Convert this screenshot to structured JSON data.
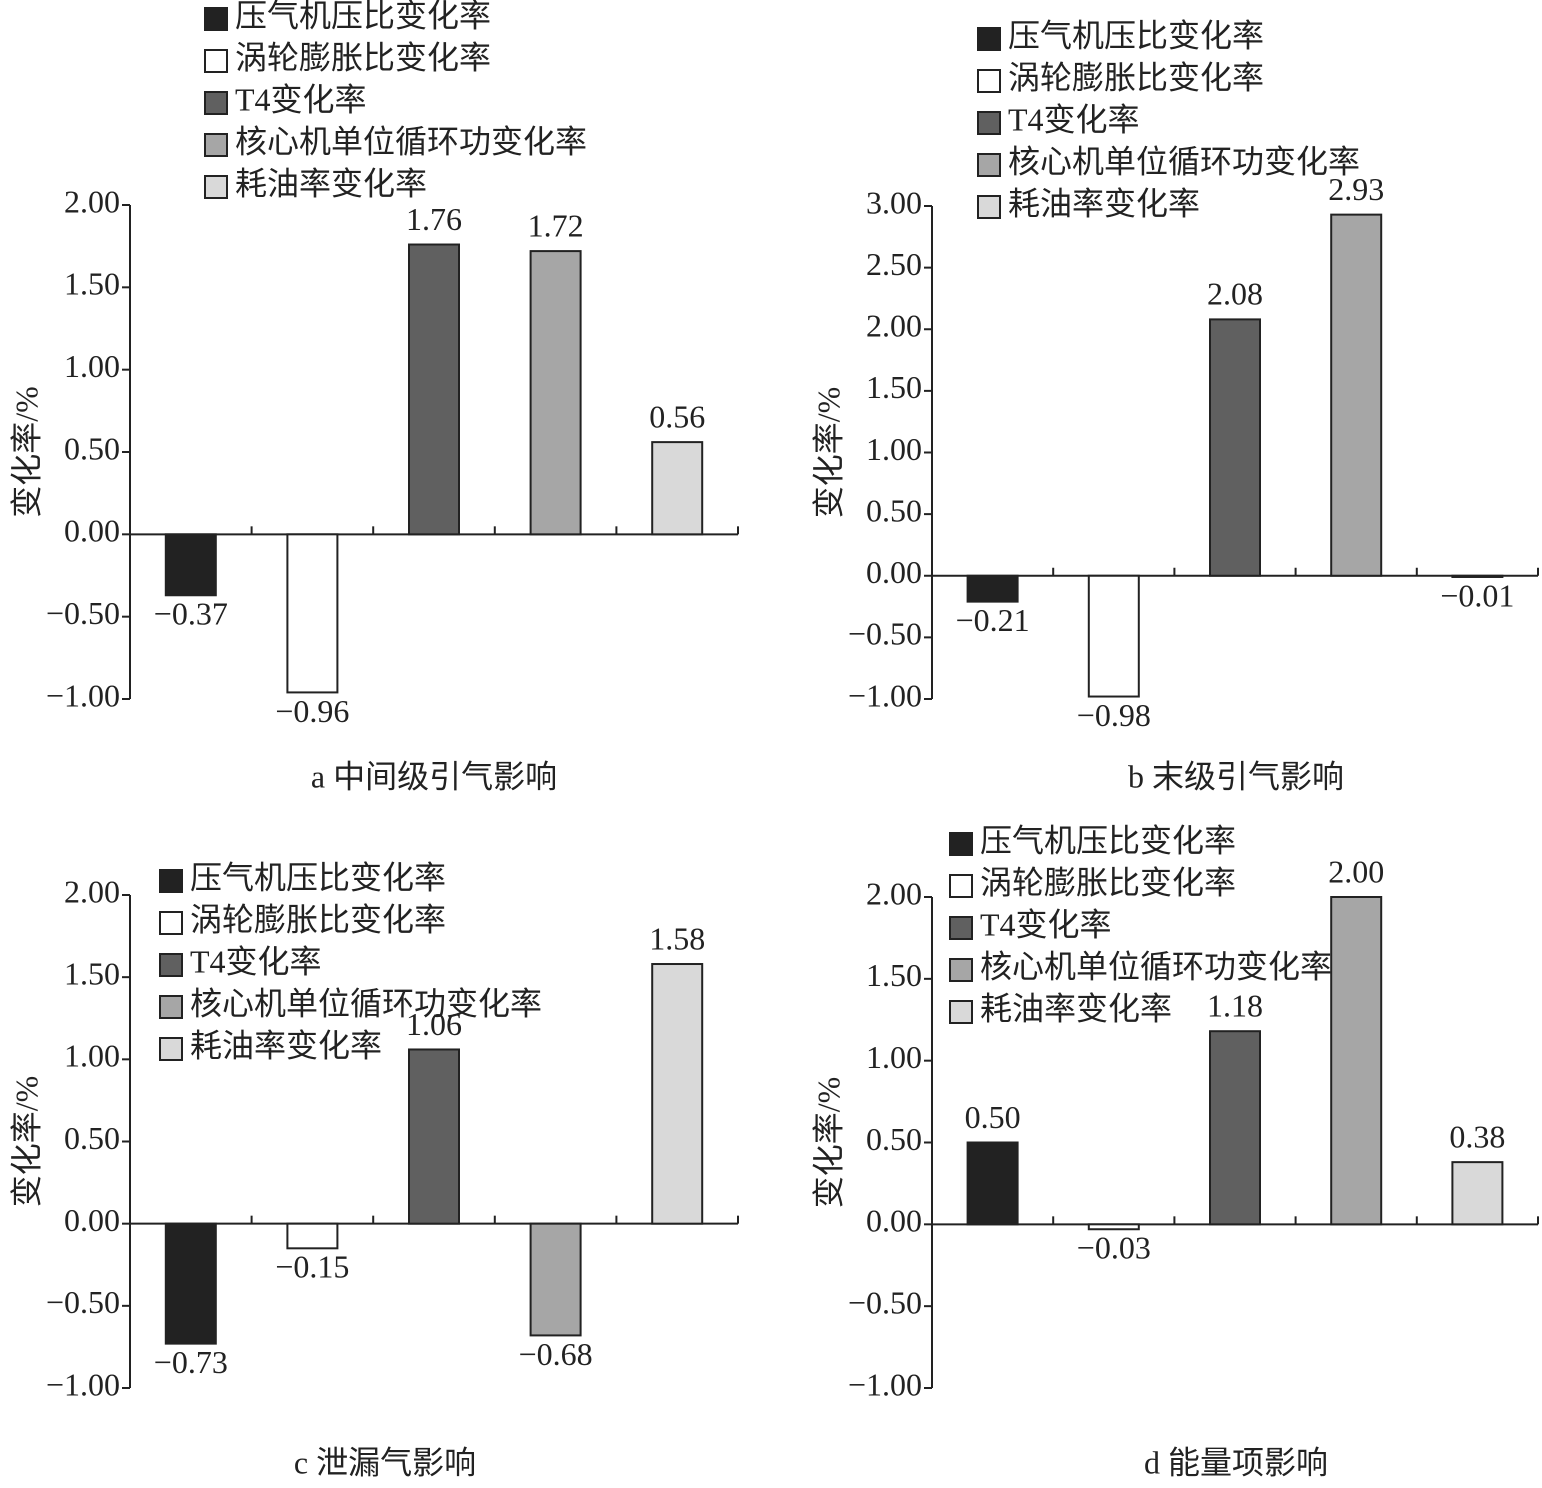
{
  "chart_data": [
    {
      "type": "bar",
      "title": "a 中间级引气影响",
      "ylabel": "变化率/%",
      "series": [
        {
          "name": "压气机压比变化率",
          "color": "#222222",
          "values": [
            -0.37
          ],
          "value_labels": [
            "−0.37"
          ]
        },
        {
          "name": "涡轮膨胀比变化率",
          "color": "#ffffff",
          "values": [
            -0.96
          ],
          "value_labels": [
            "−0.96"
          ]
        },
        {
          "name": "T4变化率",
          "color": "#606060",
          "values": [
            1.76
          ],
          "value_labels": [
            "1.76"
          ]
        },
        {
          "name": "核心机单位循环功变化率",
          "color": "#a6a6a6",
          "values": [
            1.72
          ],
          "value_labels": [
            "1.72"
          ]
        },
        {
          "name": "耗油率变化率",
          "color": "#d9d9d9",
          "values": [
            0.56
          ],
          "value_labels": [
            "0.56"
          ]
        }
      ],
      "ylim": [
        -1,
        2
      ],
      "yticks": [
        {
          "value": -1,
          "label": "−1.00"
        },
        {
          "value": -0.5,
          "label": "−0.50"
        },
        {
          "value": 0,
          "label": "0.00"
        },
        {
          "value": 0.5,
          "label": "0.50"
        },
        {
          "value": 1,
          "label": "1.00"
        },
        {
          "value": 1.5,
          "label": "1.50"
        },
        {
          "value": 2,
          "label": "2.00"
        }
      ]
    },
    {
      "type": "bar",
      "title": "b 末级引气影响",
      "ylabel": "变化率/%",
      "series": [
        {
          "name": "压气机压比变化率",
          "color": "#222222",
          "values": [
            -0.21
          ],
          "value_labels": [
            "−0.21"
          ]
        },
        {
          "name": "涡轮膨胀比变化率",
          "color": "#ffffff",
          "values": [
            -0.98
          ],
          "value_labels": [
            "−0.98"
          ]
        },
        {
          "name": "T4变化率",
          "color": "#606060",
          "values": [
            2.08
          ],
          "value_labels": [
            "2.08"
          ]
        },
        {
          "name": "核心机单位循环功变化率",
          "color": "#a6a6a6",
          "values": [
            2.93
          ],
          "value_labels": [
            "2.93"
          ]
        },
        {
          "name": "耗油率变化率",
          "color": "#d9d9d9",
          "values": [
            -0.01
          ],
          "value_labels": [
            "−0.01"
          ]
        }
      ],
      "ylim": [
        -1,
        3
      ],
      "yticks": [
        {
          "value": -1,
          "label": "−1.00"
        },
        {
          "value": -0.5,
          "label": "−0.50"
        },
        {
          "value": 0,
          "label": "0.00"
        },
        {
          "value": 0.5,
          "label": "0.50"
        },
        {
          "value": 1,
          "label": "1.00"
        },
        {
          "value": 1.5,
          "label": "1.50"
        },
        {
          "value": 2,
          "label": "2.00"
        },
        {
          "value": 2.5,
          "label": "2.50"
        },
        {
          "value": 3,
          "label": "3.00"
        }
      ]
    },
    {
      "type": "bar",
      "title": "c 泄漏气影响",
      "ylabel": "变化率/%",
      "series": [
        {
          "name": "压气机压比变化率",
          "color": "#222222",
          "values": [
            -0.73
          ],
          "value_labels": [
            "−0.73"
          ]
        },
        {
          "name": "涡轮膨胀比变化率",
          "color": "#ffffff",
          "values": [
            -0.15
          ],
          "value_labels": [
            "−0.15"
          ]
        },
        {
          "name": "T4变化率",
          "color": "#606060",
          "values": [
            1.06
          ],
          "value_labels": [
            "1.06"
          ]
        },
        {
          "name": "核心机单位循环功变化率",
          "color": "#a6a6a6",
          "values": [
            -0.68
          ],
          "value_labels": [
            "−0.68"
          ]
        },
        {
          "name": "耗油率变化率",
          "color": "#d9d9d9",
          "values": [
            1.58
          ],
          "value_labels": [
            "1.58"
          ]
        }
      ],
      "ylim": [
        -1,
        2
      ],
      "yticks": [
        {
          "value": -1,
          "label": "−1.00"
        },
        {
          "value": -0.5,
          "label": "−0.50"
        },
        {
          "value": 0,
          "label": "0.00"
        },
        {
          "value": 0.5,
          "label": "0.50"
        },
        {
          "value": 1,
          "label": "1.00"
        },
        {
          "value": 1.5,
          "label": "1.50"
        },
        {
          "value": 2,
          "label": "2.00"
        }
      ]
    },
    {
      "type": "bar",
      "title": "d 能量项影响",
      "ylabel": "变化率/%",
      "series": [
        {
          "name": "压气机压比变化率",
          "color": "#222222",
          "values": [
            0.5
          ],
          "value_labels": [
            "0.50"
          ]
        },
        {
          "name": "涡轮膨胀比变化率",
          "color": "#ffffff",
          "values": [
            -0.03
          ],
          "value_labels": [
            "−0.03"
          ]
        },
        {
          "name": "T4变化率",
          "color": "#606060",
          "values": [
            1.18
          ],
          "value_labels": [
            "1.18"
          ]
        },
        {
          "name": "核心机单位循环功变化率",
          "color": "#a6a6a6",
          "values": [
            2
          ],
          "value_labels": [
            "2.00"
          ]
        },
        {
          "name": "耗油率变化率",
          "color": "#d9d9d9",
          "values": [
            0.38
          ],
          "value_labels": [
            "0.38"
          ]
        }
      ],
      "ylim": [
        -1,
        2
      ],
      "yticks": [
        {
          "value": -1,
          "label": "−1.00"
        },
        {
          "value": -0.5,
          "label": "−0.50"
        },
        {
          "value": 0,
          "label": "0.00"
        },
        {
          "value": 0.5,
          "label": "0.50"
        },
        {
          "value": 1,
          "label": "1.00"
        },
        {
          "value": 1.5,
          "label": "1.50"
        },
        {
          "value": 2,
          "label": "2.00"
        }
      ]
    }
  ]
}
